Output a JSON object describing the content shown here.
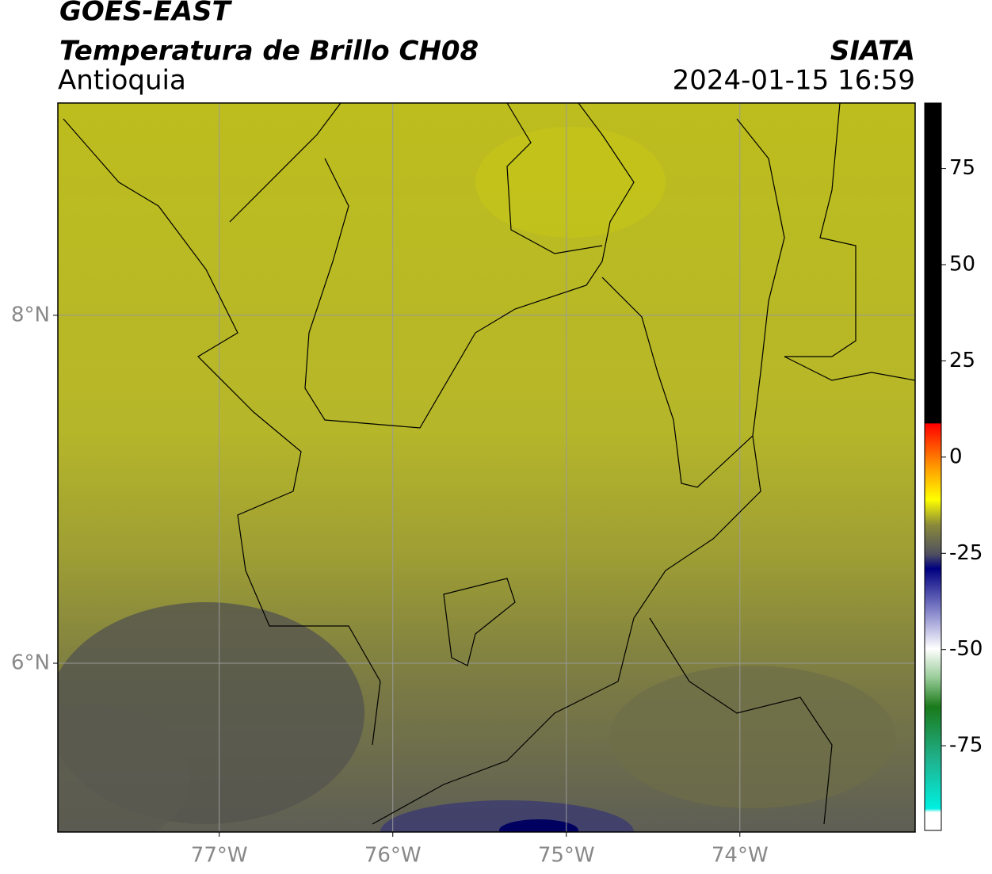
{
  "header": {
    "satellite": "GOES-EAST",
    "product": "Temperatura de Brillo CH08",
    "region": "Antioquia",
    "source": "SIATA",
    "datetime": "2024-01-15 16:59"
  },
  "map": {
    "xlim": [
      -77.93,
      -72.99
    ],
    "ylim": [
      5.03,
      9.22
    ],
    "xticks": [
      {
        "value": -77,
        "label": "77°W"
      },
      {
        "value": -76,
        "label": "76°W"
      },
      {
        "value": -75,
        "label": "75°W"
      },
      {
        "value": -74,
        "label": "74°W"
      }
    ],
    "yticks": [
      {
        "value": 6,
        "label": "6°N"
      },
      {
        "value": 8,
        "label": "8°N"
      }
    ],
    "grid": true
  },
  "colorbar": {
    "lim": [
      -97,
      92
    ],
    "ticks": [
      -75,
      -50,
      -25,
      0,
      25,
      50,
      75
    ]
  }
}
